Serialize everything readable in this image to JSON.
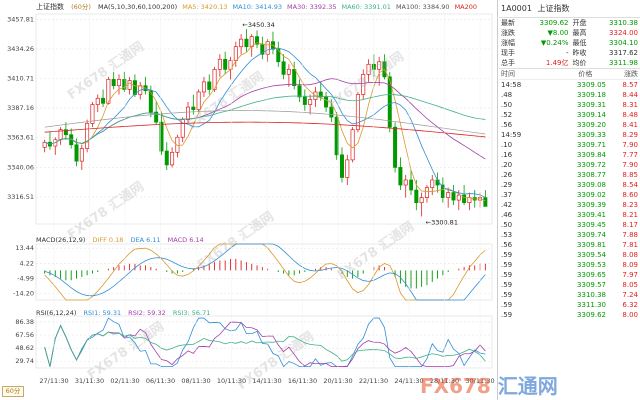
{
  "chart_header": {
    "name": "上证指数",
    "period": "(60分)",
    "ma_items": [
      {
        "label": "MA(5,10,30,60,100,200)",
        "color": "#333333"
      },
      {
        "label": "MA5: 3420.13",
        "color": "#d89a2b"
      },
      {
        "label": "MA10: 3414.93",
        "color": "#2f8fd8"
      },
      {
        "label": "MA30: 3392.35",
        "color": "#a43da8"
      },
      {
        "label": "MA60: 3391.01",
        "color": "#3cb08c"
      },
      {
        "label": "MA100: 3384.90",
        "color": "#555555"
      },
      {
        "label": "MA200",
        "color": "#d22"
      }
    ]
  },
  "price_axis": [
    "3457.81",
    "3434.26",
    "3410.71",
    "3387.16",
    "3363.61",
    "3340.06",
    "3316.51"
  ],
  "price_range": [
    3295,
    3462
  ],
  "annotations": {
    "high": "3450.34",
    "low": "3300.81"
  },
  "candles": [
    [
      3356,
      3362,
      3352,
      3360
    ],
    [
      3360,
      3368,
      3354,
      3357
    ],
    [
      3357,
      3364,
      3350,
      3362
    ],
    [
      3362,
      3372,
      3358,
      3370
    ],
    [
      3370,
      3376,
      3362,
      3366
    ],
    [
      3366,
      3371,
      3355,
      3358
    ],
    [
      3358,
      3363,
      3341,
      3345
    ],
    [
      3345,
      3358,
      3338,
      3355
    ],
    [
      3355,
      3378,
      3352,
      3375
    ],
    [
      3375,
      3392,
      3372,
      3390
    ],
    [
      3390,
      3398,
      3384,
      3395
    ],
    [
      3395,
      3402,
      3388,
      3391
    ],
    [
      3391,
      3412,
      3390,
      3410
    ],
    [
      3410,
      3416,
      3402,
      3405
    ],
    [
      3405,
      3414,
      3398,
      3410
    ],
    [
      3410,
      3416,
      3400,
      3402
    ],
    [
      3402,
      3412,
      3398,
      3409
    ],
    [
      3409,
      3414,
      3396,
      3398
    ],
    [
      3398,
      3408,
      3394,
      3405
    ],
    [
      3405,
      3412,
      3398,
      3401
    ],
    [
      3401,
      3405,
      3380,
      3384
    ],
    [
      3384,
      3392,
      3374,
      3376
    ],
    [
      3376,
      3384,
      3350,
      3353
    ],
    [
      3353,
      3360,
      3338,
      3342
    ],
    [
      3342,
      3356,
      3340,
      3352
    ],
    [
      3352,
      3366,
      3348,
      3364
    ],
    [
      3364,
      3380,
      3360,
      3378
    ],
    [
      3378,
      3392,
      3375,
      3388
    ],
    [
      3388,
      3398,
      3382,
      3386
    ],
    [
      3386,
      3402,
      3384,
      3400
    ],
    [
      3400,
      3412,
      3396,
      3408
    ],
    [
      3408,
      3414,
      3398,
      3402
    ],
    [
      3402,
      3420,
      3400,
      3418
    ],
    [
      3418,
      3430,
      3412,
      3426
    ],
    [
      3426,
      3432,
      3414,
      3418
    ],
    [
      3418,
      3428,
      3410,
      3425
    ],
    [
      3425,
      3440,
      3420,
      3436
    ],
    [
      3436,
      3446,
      3430,
      3442
    ],
    [
      3442,
      3450,
      3432,
      3436
    ],
    [
      3436,
      3446,
      3428,
      3444
    ],
    [
      3444,
      3449,
      3435,
      3438
    ],
    [
      3438,
      3444,
      3426,
      3430
    ],
    [
      3430,
      3442,
      3424,
      3440
    ],
    [
      3440,
      3448,
      3430,
      3434
    ],
    [
      3434,
      3440,
      3420,
      3424
    ],
    [
      3424,
      3430,
      3410,
      3414
    ],
    [
      3414,
      3422,
      3404,
      3418
    ],
    [
      3418,
      3424,
      3402,
      3405
    ],
    [
      3405,
      3410,
      3392,
      3396
    ],
    [
      3396,
      3402,
      3385,
      3390
    ],
    [
      3390,
      3398,
      3382,
      3394
    ],
    [
      3394,
      3404,
      3388,
      3400
    ],
    [
      3400,
      3408,
      3393,
      3396
    ],
    [
      3396,
      3400,
      3384,
      3388
    ],
    [
      3388,
      3394,
      3376,
      3380
    ],
    [
      3380,
      3384,
      3346,
      3350
    ],
    [
      3350,
      3356,
      3328,
      3332
    ],
    [
      3332,
      3350,
      3326,
      3346
    ],
    [
      3346,
      3372,
      3344,
      3370
    ],
    [
      3370,
      3400,
      3368,
      3398
    ],
    [
      3398,
      3418,
      3394,
      3414
    ],
    [
      3414,
      3426,
      3408,
      3422
    ],
    [
      3422,
      3430,
      3412,
      3418
    ],
    [
      3418,
      3428,
      3405,
      3424
    ],
    [
      3424,
      3430,
      3410,
      3412
    ],
    [
      3412,
      3416,
      3368,
      3372
    ],
    [
      3372,
      3376,
      3336,
      3340
    ],
    [
      3340,
      3348,
      3322,
      3326
    ],
    [
      3326,
      3334,
      3316,
      3330
    ],
    [
      3330,
      3338,
      3318,
      3322
    ],
    [
      3322,
      3330,
      3306,
      3312
    ],
    [
      3312,
      3320,
      3301,
      3316
    ],
    [
      3316,
      3326,
      3312,
      3324
    ],
    [
      3324,
      3334,
      3318,
      3330
    ],
    [
      3330,
      3336,
      3320,
      3326
    ],
    [
      3326,
      3332,
      3312,
      3316
    ],
    [
      3316,
      3324,
      3308,
      3320
    ],
    [
      3320,
      3326,
      3310,
      3314
    ],
    [
      3314,
      3322,
      3306,
      3318
    ],
    [
      3318,
      3326,
      3310,
      3312
    ],
    [
      3312,
      3320,
      3306,
      3316
    ],
    [
      3316,
      3322,
      3308,
      3314
    ],
    [
      3314,
      3320,
      3308,
      3316
    ],
    [
      3316,
      3322,
      3310,
      3309
    ]
  ],
  "macd_header": {
    "label": "MACD(26,12,9)",
    "diff": "DIFF 0.18",
    "dea": "DEA 6.11",
    "macd": "MACD 6.14"
  },
  "macd_axis": [
    "13.44",
    "4.22",
    "-4.99",
    "-14.20"
  ],
  "macd_range": [
    -18,
    16
  ],
  "macd_hist": [
    -2,
    -3,
    -4,
    -5,
    -6,
    -6,
    -5,
    -4,
    -3,
    -2,
    -1,
    0,
    1,
    2,
    3,
    3,
    4,
    4,
    3,
    3,
    2,
    1,
    0,
    -1,
    -2,
    -2,
    -1,
    0,
    1,
    2,
    3,
    4,
    5,
    6,
    6,
    7,
    7,
    6,
    5,
    4,
    3,
    2,
    1,
    0,
    -1,
    -2,
    -3,
    -3,
    -2,
    -1,
    0,
    1,
    2,
    2,
    1,
    0,
    -2,
    -4,
    -5,
    -4,
    -2,
    0,
    2,
    3,
    2,
    0,
    -4,
    -8,
    -10,
    -11,
    -11,
    -10,
    -9,
    -7,
    -5,
    -3,
    -1,
    0,
    1,
    2,
    3,
    3,
    4,
    4
  ],
  "rsi_header": {
    "label": "RSI(6,12,24)",
    "rsi1": "RSI1: 59.31",
    "rsi2": "RSI2: 59.32",
    "rsi3": "RSI3: 56.71"
  },
  "rsi_axis": [
    "86.38",
    "67.56",
    "48.62",
    "29.74"
  ],
  "x_axis": [
    "27/11:30",
    "31/11:30",
    "02/11:30",
    "06/11:30",
    "08/11:30",
    "10/11:30",
    "14/11:30",
    "16/11:30",
    "20/11:30",
    "22/11:30",
    "24/11:30",
    "28/11:30",
    "30/11:30"
  ],
  "period_button": "60分",
  "quote": {
    "code": "1A0001",
    "name": "上证指数",
    "rows": [
      {
        "l1": "最新",
        "v1": "3309.62",
        "c1": "green",
        "l2": "开盘",
        "v2": "3310.38",
        "c2": "green"
      },
      {
        "l1": "涨跌",
        "v1": "▼8.00",
        "c1": "green",
        "l2": "最高",
        "v2": "3324.00",
        "c2": "red"
      },
      {
        "l1": "涨幅",
        "v1": "▼0.24%",
        "c1": "green",
        "l2": "最低",
        "v2": "3304.10",
        "c2": "green"
      },
      {
        "l1": "现手",
        "v1": "-",
        "c1": "",
        "l2": "昨收",
        "v2": "3317.62",
        "c2": ""
      },
      {
        "l1": "总手",
        "v1": "1.49亿",
        "c1": "red",
        "l2": "均价",
        "v2": "3311.98",
        "c2": "green"
      }
    ]
  },
  "ticks_header": {
    "time": "时间",
    "price": "价格",
    "change": "涨跌"
  },
  "ticks": [
    {
      "t": "14:58",
      "p": "3309.05",
      "q": "8.57"
    },
    {
      "t": ".48",
      "p": "3309.18",
      "q": "8.44"
    },
    {
      "t": ".50",
      "p": "3309.31",
      "q": "8.31"
    },
    {
      "t": ".52",
      "p": "3309.14",
      "q": "8.48"
    },
    {
      "t": ".56",
      "p": "3309.20",
      "q": "8.41"
    },
    {
      "t": "14:59",
      "p": "3309.33",
      "q": "8.29"
    },
    {
      "t": ".10",
      "p": "3309.71",
      "q": "7.90"
    },
    {
      "t": ".16",
      "p": "3309.84",
      "q": "7.77"
    },
    {
      "t": ".20",
      "p": "3309.72",
      "q": "7.90"
    },
    {
      "t": ".26",
      "p": "3308.77",
      "q": "8.85"
    },
    {
      "t": ".29",
      "p": "3309.08",
      "q": "8.54"
    },
    {
      "t": ".37",
      "p": "3309.02",
      "q": "8.60"
    },
    {
      "t": ".42",
      "p": "3309.39",
      "q": "8.23"
    },
    {
      "t": ".46",
      "p": "3309.41",
      "q": "8.21"
    },
    {
      "t": ".50",
      "p": "3309.45",
      "q": "8.17"
    },
    {
      "t": ".53",
      "p": "3309.74",
      "q": "7.88"
    },
    {
      "t": ".56",
      "p": "3309.81",
      "q": "7.81"
    },
    {
      "t": ".59",
      "p": "3309.54",
      "q": "8.08"
    },
    {
      "t": ".59",
      "p": "3309.53",
      "q": "8.09"
    },
    {
      "t": ".59",
      "p": "3309.65",
      "q": "7.97"
    },
    {
      "t": ".59",
      "p": "3309.57",
      "q": "8.05"
    },
    {
      "t": ".59",
      "p": "3310.38",
      "q": "7.24"
    },
    {
      "t": ".59",
      "p": "3311.30",
      "q": "6.32"
    },
    {
      "t": ".59",
      "p": "3309.62",
      "q": "8.00"
    }
  ],
  "watermark": "FX678 汇通网",
  "brand": {
    "a": "FX678",
    "b": "汇通网"
  },
  "colors": {
    "up": "#e02020",
    "down": "#009900",
    "grid": "#e6e6e6"
  }
}
